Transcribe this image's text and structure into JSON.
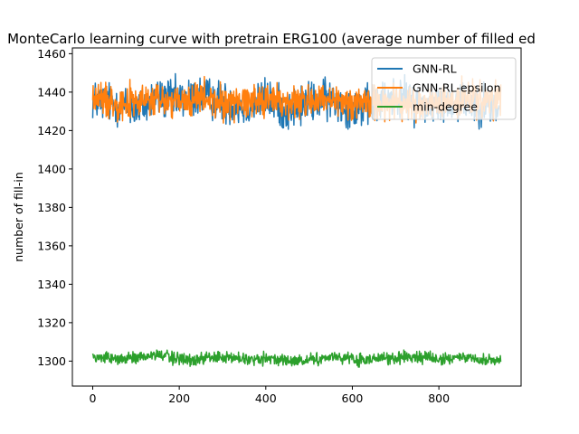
{
  "chart_data": {
    "type": "line",
    "title": "MonteCarlo learning curve with pretrain ERG100 (average number of filled ed",
    "xlabel": "",
    "ylabel": "number of fill-in",
    "xlim": [
      -47,
      990
    ],
    "ylim": [
      1287,
      1463
    ],
    "xticks": [
      0,
      200,
      400,
      600,
      800
    ],
    "yticks": [
      1300,
      1320,
      1340,
      1360,
      1380,
      1400,
      1420,
      1440,
      1460
    ],
    "grid": false,
    "legend_position": "top-right",
    "n_points": 944,
    "series": [
      {
        "name": "GNN-RL",
        "color": "#1f77b4",
        "mean": 1435,
        "noise_amplitude": 8,
        "min": 1414,
        "max": 1451,
        "x": [
          0,
          50,
          100,
          150,
          200,
          250,
          300,
          350,
          400,
          450,
          500,
          550,
          600,
          650,
          700,
          750,
          800,
          850,
          900,
          943
        ],
        "values": [
          1436,
          1434,
          1431,
          1437,
          1436,
          1438,
          1435,
          1432,
          1437,
          1430,
          1435,
          1436,
          1432,
          1433,
          1438,
          1434,
          1433,
          1436,
          1434,
          1432
        ]
      },
      {
        "name": "GNN-RL-epsilon",
        "color": "#ff7f0e",
        "mean": 1435,
        "noise_amplitude": 7,
        "min": 1415,
        "max": 1449,
        "x": [
          0,
          50,
          100,
          150,
          200,
          250,
          300,
          350,
          400,
          450,
          500,
          550,
          600,
          650,
          700,
          750,
          800,
          850,
          900,
          943
        ],
        "values": [
          1437,
          1435,
          1435,
          1436,
          1434,
          1437,
          1434,
          1436,
          1437,
          1434,
          1436,
          1434,
          1435,
          1435,
          1434,
          1433,
          1434,
          1436,
          1435,
          1436
        ]
      },
      {
        "name": "min-degree",
        "color": "#2ca02c",
        "mean": 1301.5,
        "noise_amplitude": 2.4,
        "min": 1296,
        "max": 1307,
        "x": [
          0,
          50,
          100,
          150,
          200,
          250,
          300,
          350,
          400,
          450,
          500,
          550,
          600,
          650,
          700,
          750,
          800,
          850,
          900,
          943
        ],
        "values": [
          1302,
          1301,
          1302,
          1303,
          1301,
          1301,
          1302,
          1301,
          1301,
          1300,
          1301,
          1302,
          1301,
          1301,
          1302,
          1302,
          1301,
          1302,
          1301,
          1301
        ]
      }
    ]
  }
}
